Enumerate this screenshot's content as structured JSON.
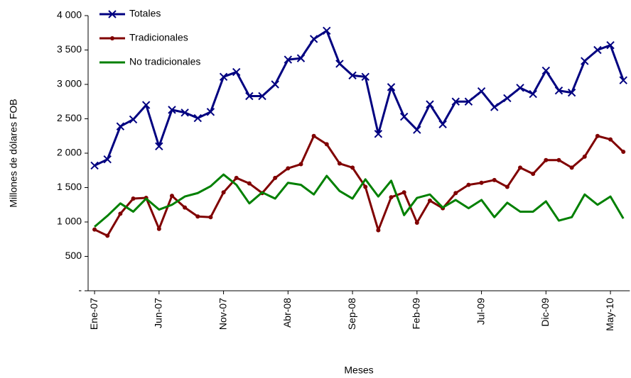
{
  "chart_data": {
    "type": "line",
    "x_label": "Meses",
    "y_label": "Millones de dólares FOB",
    "categories": [
      "Ene-07",
      null,
      null,
      null,
      null,
      "Jun-07",
      null,
      null,
      null,
      null,
      "Nov-07",
      null,
      null,
      null,
      null,
      "Abr-08",
      null,
      null,
      null,
      null,
      "Sep-08",
      null,
      null,
      null,
      null,
      "Feb-09",
      null,
      null,
      null,
      null,
      "Jul-09",
      null,
      null,
      null,
      null,
      "Dic-09",
      null,
      null,
      null,
      null,
      "May-10",
      null
    ],
    "series": [
      {
        "name": "Totales",
        "color": "#000080",
        "marker": "x",
        "values": [
          1820,
          1910,
          2390,
          2490,
          2700,
          2100,
          2630,
          2590,
          2510,
          2600,
          3110,
          3180,
          2830,
          2830,
          3000,
          3360,
          3380,
          3660,
          3780,
          3300,
          3130,
          3110,
          2280,
          2960,
          2530,
          2340,
          2710,
          2420,
          2750,
          2750,
          2900,
          2670,
          2800,
          2950,
          2860,
          3200,
          2910,
          2880,
          3340,
          3500,
          3570,
          3060
        ]
      },
      {
        "name": "Tradicionales",
        "color": "#800000",
        "marker": "circle",
        "values": [
          890,
          800,
          1120,
          1340,
          1350,
          900,
          1380,
          1210,
          1080,
          1070,
          1430,
          1640,
          1560,
          1420,
          1640,
          1780,
          1840,
          2250,
          2130,
          1850,
          1790,
          1510,
          880,
          1360,
          1430,
          990,
          1310,
          1200,
          1420,
          1540,
          1570,
          1610,
          1510,
          1790,
          1700,
          1900,
          1900,
          1790,
          1950,
          2250,
          2200,
          2020
        ]
      },
      {
        "name": "No tradicionales",
        "color": "#008000",
        "marker": "none",
        "values": [
          930,
          1090,
          1270,
          1150,
          1340,
          1180,
          1250,
          1370,
          1420,
          1520,
          1690,
          1540,
          1270,
          1430,
          1340,
          1570,
          1540,
          1400,
          1670,
          1450,
          1340,
          1620,
          1370,
          1600,
          1100,
          1350,
          1400,
          1210,
          1320,
          1200,
          1320,
          1070,
          1280,
          1150,
          1150,
          1300,
          1020,
          1070,
          1400,
          1250,
          1370,
          1050
        ]
      }
    ],
    "ylim": [
      0,
      4000
    ],
    "yticks": [
      {
        "value": 0,
        "label": "-"
      },
      500,
      {
        "value": 1000,
        "label": "1 000"
      },
      {
        "value": 1500,
        "label": "1 500"
      },
      {
        "value": 2000,
        "label": "2 000"
      },
      {
        "value": 2500,
        "label": "2 500"
      },
      {
        "value": 3000,
        "label": "3 000"
      },
      {
        "value": 3500,
        "label": "3 500"
      },
      {
        "value": 4000,
        "label": "4 000"
      }
    ],
    "grid": false,
    "legend": "top-left"
  }
}
